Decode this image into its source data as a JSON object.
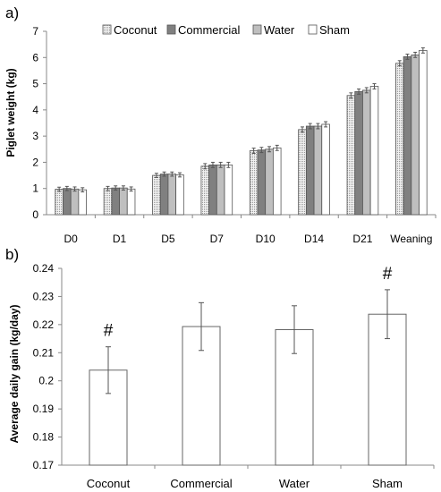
{
  "chart_data": [
    {
      "panel_label": "a)",
      "type": "bar",
      "categories": [
        "D0",
        "D1",
        "D5",
        "D7",
        "D10",
        "D14",
        "D21",
        "Weaning"
      ],
      "series": [
        {
          "name": "Coconut",
          "values": [
            0.97,
            1.0,
            1.5,
            1.85,
            2.44,
            3.25,
            4.55,
            5.78
          ],
          "errors": [
            0.08,
            0.08,
            0.08,
            0.1,
            0.1,
            0.1,
            0.1,
            0.1
          ],
          "fill": "#e8e8e8",
          "pattern": "dotted"
        },
        {
          "name": "Commercial",
          "values": [
            1.0,
            1.02,
            1.55,
            1.9,
            2.47,
            3.38,
            4.7,
            6.03
          ],
          "errors": [
            0.08,
            0.08,
            0.08,
            0.1,
            0.1,
            0.1,
            0.1,
            0.1
          ],
          "fill": "#808080",
          "pattern": "solid"
        },
        {
          "name": "Water",
          "values": [
            0.98,
            1.02,
            1.55,
            1.9,
            2.5,
            3.38,
            4.75,
            6.1
          ],
          "errors": [
            0.08,
            0.08,
            0.08,
            0.1,
            0.1,
            0.1,
            0.1,
            0.1
          ],
          "fill": "#bfbfbf",
          "pattern": "solid"
        },
        {
          "name": "Sham",
          "values": [
            0.95,
            0.98,
            1.52,
            1.9,
            2.55,
            3.45,
            4.9,
            6.27
          ],
          "errors": [
            0.08,
            0.08,
            0.08,
            0.1,
            0.1,
            0.1,
            0.1,
            0.1
          ],
          "fill": "#ffffff",
          "pattern": "solid"
        }
      ],
      "ylabel": "Piglet weight (kg)",
      "xlabel": "",
      "ylim": [
        0,
        7
      ],
      "yticks": [
        "0",
        "1",
        "2",
        "3",
        "4",
        "5",
        "6",
        "7"
      ],
      "grid": false,
      "legend_placement": "top"
    },
    {
      "panel_label": "b)",
      "type": "bar",
      "categories": [
        "Coconut",
        "Commercial",
        "Water",
        "Sham"
      ],
      "values": [
        0.2038,
        0.2193,
        0.2182,
        0.2237
      ],
      "errors": [
        0.0083,
        0.0085,
        0.0085,
        0.0087
      ],
      "annotations": [
        "#",
        "",
        "",
        "#"
      ],
      "ylabel": "Average daily gain (kg/day)",
      "xlabel": "",
      "ylim": [
        0.17,
        0.24
      ],
      "yticks": [
        "0.17",
        "0.18",
        "0.19",
        "0.2",
        "0.21",
        "0.22",
        "0.23",
        "0.24"
      ],
      "grid": false
    }
  ]
}
